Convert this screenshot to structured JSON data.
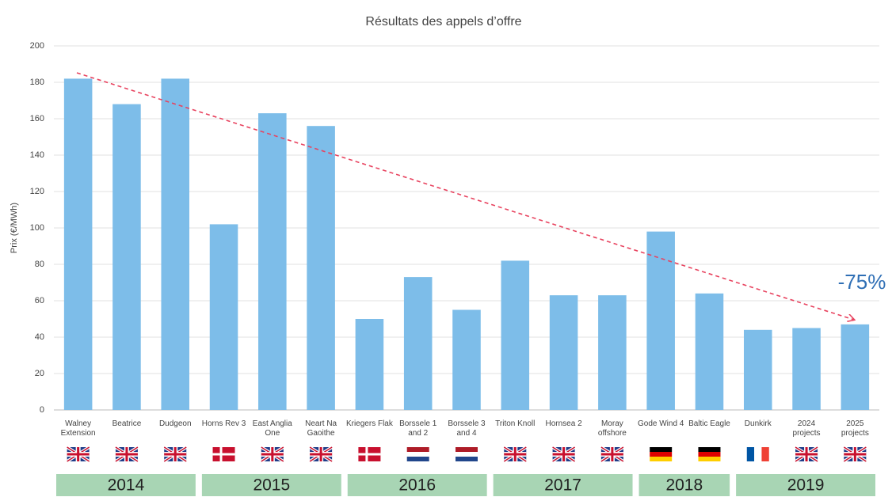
{
  "chart_data": {
    "type": "bar",
    "title": "Résultats des appels d’offre",
    "y_label": "Prix (€/MWh)",
    "categories": [
      "Walney Extension",
      "Beatrice",
      "Dudgeon",
      "Horns Rev 3",
      "East Anglia One",
      "Neart Na Gaoithe",
      "Kriegers Flak",
      "Borssele 1 and 2",
      "Borssele 3 and 4",
      "Triton Knoll",
      "Hornsea 2",
      "Moray offshore",
      "Gode Wind 4",
      "Baltic Eagle",
      "Dunkirk",
      "2024 projects",
      "2025 projects"
    ],
    "values": [
      182,
      168,
      182,
      102,
      163,
      156,
      50,
      73,
      55,
      82,
      63,
      63,
      98,
      64,
      44,
      45,
      47
    ],
    "color": "#7dbde9",
    "ylim": [
      0,
      200
    ],
    "yticks": [
      0,
      20,
      40,
      60,
      80,
      100,
      120,
      140,
      160,
      180,
      200
    ],
    "grid": true,
    "years": [
      "2014",
      "2015",
      "2016",
      "2017",
      "2018",
      "2019"
    ],
    "annotation": "-75%"
  }
}
